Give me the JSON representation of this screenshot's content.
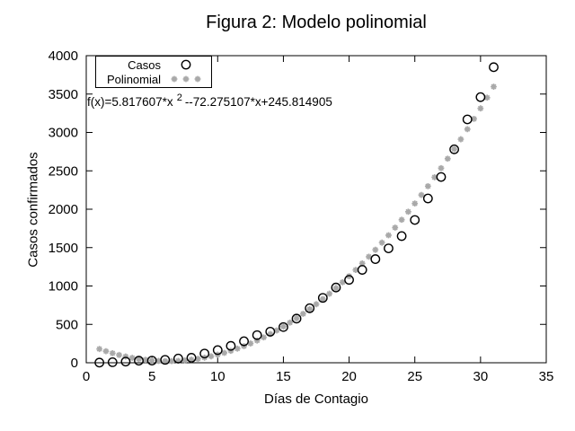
{
  "chart_data": {
    "type": "scatter",
    "title": "Figura 2: Modelo polinomial",
    "xlabel": "Días de Contagio",
    "ylabel": "Casos confirmados",
    "xlim": [
      0,
      35
    ],
    "ylim": [
      0,
      4000
    ],
    "xticks": [
      0,
      5,
      10,
      15,
      20,
      25,
      30,
      35
    ],
    "yticks": [
      0,
      500,
      1000,
      1500,
      2000,
      2500,
      3000,
      3500,
      4000
    ],
    "grid": false,
    "legend_position": "top-left",
    "annotation": {
      "prefix": "f(x)=5.817607*x",
      "exponent": "2",
      "suffix": "--72.275107*x+245.814905"
    },
    "colors": {
      "background": "#ffffff",
      "foreground": "#000000",
      "casos": "#000000",
      "polinomial": "#a9a9a9"
    },
    "series": [
      {
        "name": "Casos",
        "marker": "circle",
        "color": "#000000",
        "x": [
          1,
          2,
          3,
          4,
          5,
          6,
          7,
          8,
          9,
          10,
          11,
          12,
          13,
          14,
          15,
          16,
          17,
          18,
          19,
          20,
          21,
          22,
          23,
          24,
          25,
          26,
          27,
          28,
          29,
          30,
          31
        ],
        "y": [
          2,
          7,
          15,
          27,
          28,
          38,
          55,
          65,
          120,
          165,
          220,
          280,
          360,
          405,
          465,
          575,
          710,
          845,
          980,
          1080,
          1210,
          1350,
          1490,
          1650,
          1860,
          2140,
          2420,
          2780,
          3170,
          3460,
          3850
        ]
      },
      {
        "name": "Polinomial",
        "marker": "asterisk",
        "color": "#a9a9a9",
        "polynomial": {
          "a": 5.817607,
          "b": -72.275107,
          "c": 245.814905
        },
        "x_start": 1,
        "x_end": 31,
        "x_step": 0.5
      }
    ]
  }
}
